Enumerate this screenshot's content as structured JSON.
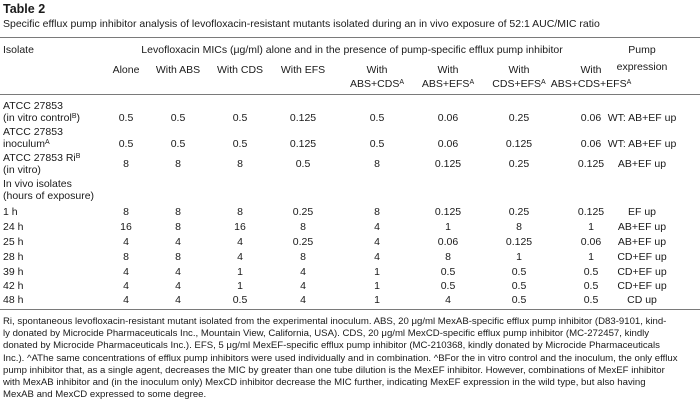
{
  "table_label": "Table 2",
  "caption": "Specific efflux pump inhibitor analysis of levofloxacin-resistant mutants isolated during an in vivo exposure of 52:1 AUC/MIC ratio",
  "header": {
    "isolate": "Isolate",
    "group": "Levofloxacin MICs (μg/ml) alone and in the presence of pump-specific efflux pump inhibitor",
    "pump_line1": "Pump",
    "pump_line2": "expression",
    "columns": [
      {
        "line1": "Alone",
        "line2": "",
        "sup": ""
      },
      {
        "line1": "With ABS",
        "line2": "",
        "sup": ""
      },
      {
        "line1": "With CDS",
        "line2": "",
        "sup": ""
      },
      {
        "line1": "With EFS",
        "line2": "",
        "sup": ""
      },
      {
        "line1": "With",
        "line2": "ABS+CDS",
        "sup": "A"
      },
      {
        "line1": "With",
        "line2": "ABS+EFS",
        "sup": "A"
      },
      {
        "line1": "With",
        "line2": "CDS+EFS",
        "sup": "A"
      },
      {
        "line1": "With",
        "line2": "ABS+CDS+EFS",
        "sup": "A"
      }
    ]
  },
  "rows": [
    {
      "isolate": [
        "ATCC 27853",
        "(in vitro control"
      ],
      "isolate_sup": "B",
      "isolate_tail": ")",
      "values": [
        "0.5",
        "0.5",
        "0.5",
        "0.125",
        "0.5",
        "0.06",
        "0.25",
        "0.06"
      ],
      "pump": "WT: AB+EF up"
    },
    {
      "isolate": [
        "ATCC 27853",
        "inoculum"
      ],
      "isolate_sup": "A",
      "isolate_tail": "",
      "values": [
        "0.5",
        "0.5",
        "0.5",
        "0.125",
        "0.5",
        "0.06",
        "0.125",
        "0.06"
      ],
      "pump": "WT: AB+EF up"
    },
    {
      "isolate": [
        "ATCC 27853 Ri",
        "(in vitro)"
      ],
      "isolate_sup_line1": "B",
      "values": [
        "8",
        "8",
        "8",
        "0.5",
        "8",
        "0.125",
        "0.25",
        "0.125"
      ],
      "pump": "AB+EF up"
    },
    {
      "isolate": [
        "In vivo isolates",
        "(hours of exposure)"
      ]
    },
    {
      "isolate": [
        "1 h"
      ],
      "values": [
        "8",
        "8",
        "8",
        "0.25",
        "8",
        "0.125",
        "0.25",
        "0.125"
      ],
      "pump": "EF up"
    },
    {
      "isolate": [
        "24 h"
      ],
      "values": [
        "16",
        "8",
        "16",
        "8",
        "4",
        "1",
        "8",
        "1"
      ],
      "pump": "AB+EF up"
    },
    {
      "isolate": [
        "25 h"
      ],
      "values": [
        "4",
        "4",
        "4",
        "0.25",
        "4",
        "0.06",
        "0.125",
        "0.06"
      ],
      "pump": "AB+EF up"
    },
    {
      "isolate": [
        "28 h"
      ],
      "values": [
        "8",
        "8",
        "4",
        "8",
        "4",
        "8",
        "1",
        "1"
      ],
      "pump": "CD+EF up"
    },
    {
      "isolate": [
        "39 h"
      ],
      "values": [
        "4",
        "4",
        "1",
        "4",
        "1",
        "0.5",
        "0.5",
        "0.5"
      ],
      "pump": "CD+EF up"
    },
    {
      "isolate": [
        "42 h"
      ],
      "values": [
        "4",
        "4",
        "1",
        "4",
        "1",
        "0.5",
        "0.5",
        "0.5"
      ],
      "pump": "CD+EF up"
    },
    {
      "isolate": [
        "48 h"
      ],
      "values": [
        "4",
        "4",
        "0.5",
        "4",
        "1",
        "4",
        "0.5",
        "0.5"
      ],
      "pump": "CD up"
    }
  ],
  "footnote": [
    "Ri, spontaneous levofloxacin-resistant mutant isolated from the experimental inoculum. ABS, 20 μg/ml MexAB-specific efflux pump inhibitor (D83-9101, kind-",
    "ly donated by Microcide Pharmaceuticals Inc., Mountain View, California, USA). CDS, 20 μg/ml MexCD-specific efflux pump inhibitor (MC-272457, kindly",
    "donated by Microcide Pharmaceuticals Inc.). EFS, 5 μg/ml MexEF-specific efflux pump inhibitor (MC-210368, kindly donated by Microcide Pharmaceuticals",
    "Inc.). ^AThe same concentrations of efflux pump inhibitors were used individually and in combination. ^BFor the in vitro control and the inoculum, the only efflux",
    "pump inhibitor that, as a single agent, decreases the MIC by greater than one tube dilution is the MexEF inhibitor. However, combinations of MexEF inhibitor",
    "with MexAB inhibitor and (in the inoculum only) MexCD inhibitor decrease the MIC further, indicating MexEF expression in the wild type, but also having",
    "MexAB and MexCD expressed to some degree."
  ]
}
